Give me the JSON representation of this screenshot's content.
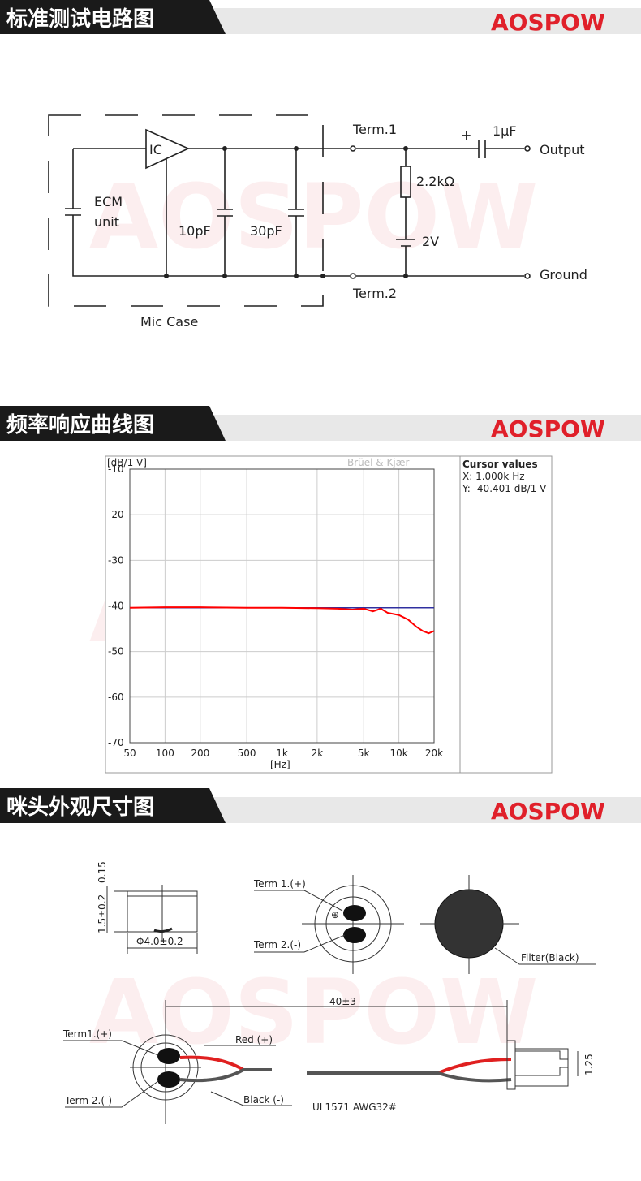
{
  "brand": "AOSPOW",
  "circuit": {
    "title": "标准测试电路图",
    "term1": "Term.1",
    "plus": "+",
    "cap_out": "1μF",
    "output": "Output",
    "ic": "IC",
    "ecm": "ECM",
    "unit": "unit",
    "resistor": "2.2kΩ",
    "c1": "10pF",
    "c2": "30pF",
    "battery": "2V",
    "ground": "Ground",
    "term2": "Term.2",
    "case": "Mic Case"
  },
  "response": {
    "title": "频率响应曲线图"
  },
  "chart_data": {
    "type": "line",
    "y_label": "[dB/1 V]",
    "x_label": "[Hz]",
    "maker": "Brüel & Kjær",
    "cursor_title": "Cursor values",
    "cursor": {
      "x": 1000,
      "y": -40.401,
      "x_label": "X: 1.000k Hz",
      "y_label": "Y: -40.401 dB/1 V"
    },
    "log_x": true,
    "grid": true,
    "color": "#ff0000",
    "x": [
      50,
      100,
      200,
      500,
      1000,
      2000,
      3000,
      4000,
      5000,
      6000,
      7000,
      8000,
      10000,
      12000,
      14000,
      16000,
      18000,
      20000
    ],
    "values": [
      -40.4,
      -40.3,
      -40.3,
      -40.4,
      -40.4,
      -40.5,
      -40.6,
      -40.8,
      -40.6,
      -41.2,
      -40.6,
      -41.5,
      -42,
      -43,
      -44.5,
      -45.5,
      -46,
      -45.5
    ],
    "xlim": [
      50,
      20000
    ],
    "ylim": [
      -70,
      -10
    ],
    "xticks": [
      50,
      100,
      200,
      500,
      {
        "value": 1000,
        "label": "1k"
      },
      {
        "value": 2000,
        "label": "2k"
      },
      {
        "value": 5000,
        "label": "5k"
      },
      {
        "value": 10000,
        "label": "10k"
      },
      {
        "value": 20000,
        "label": "20k"
      }
    ],
    "yticks": [
      -10,
      -20,
      -30,
      -40,
      -50,
      -60,
      -70
    ]
  },
  "dimensions": {
    "title": "咪头外观尺寸图",
    "top_gap": "0.15",
    "height": "1.5±0.2",
    "diameter": "Φ4.0±0.2",
    "term1": "Term 1.(+)",
    "term2": "Term 2.(-)",
    "filter": "Filter(Black)",
    "length": "40±3",
    "wire_term1": "Term1.(+)",
    "red": "Red (+)",
    "wire_term2": "Term 2.(-)",
    "black": "Black (-)",
    "cable": "UL1571 AWG32#",
    "pitch": "1.25"
  }
}
